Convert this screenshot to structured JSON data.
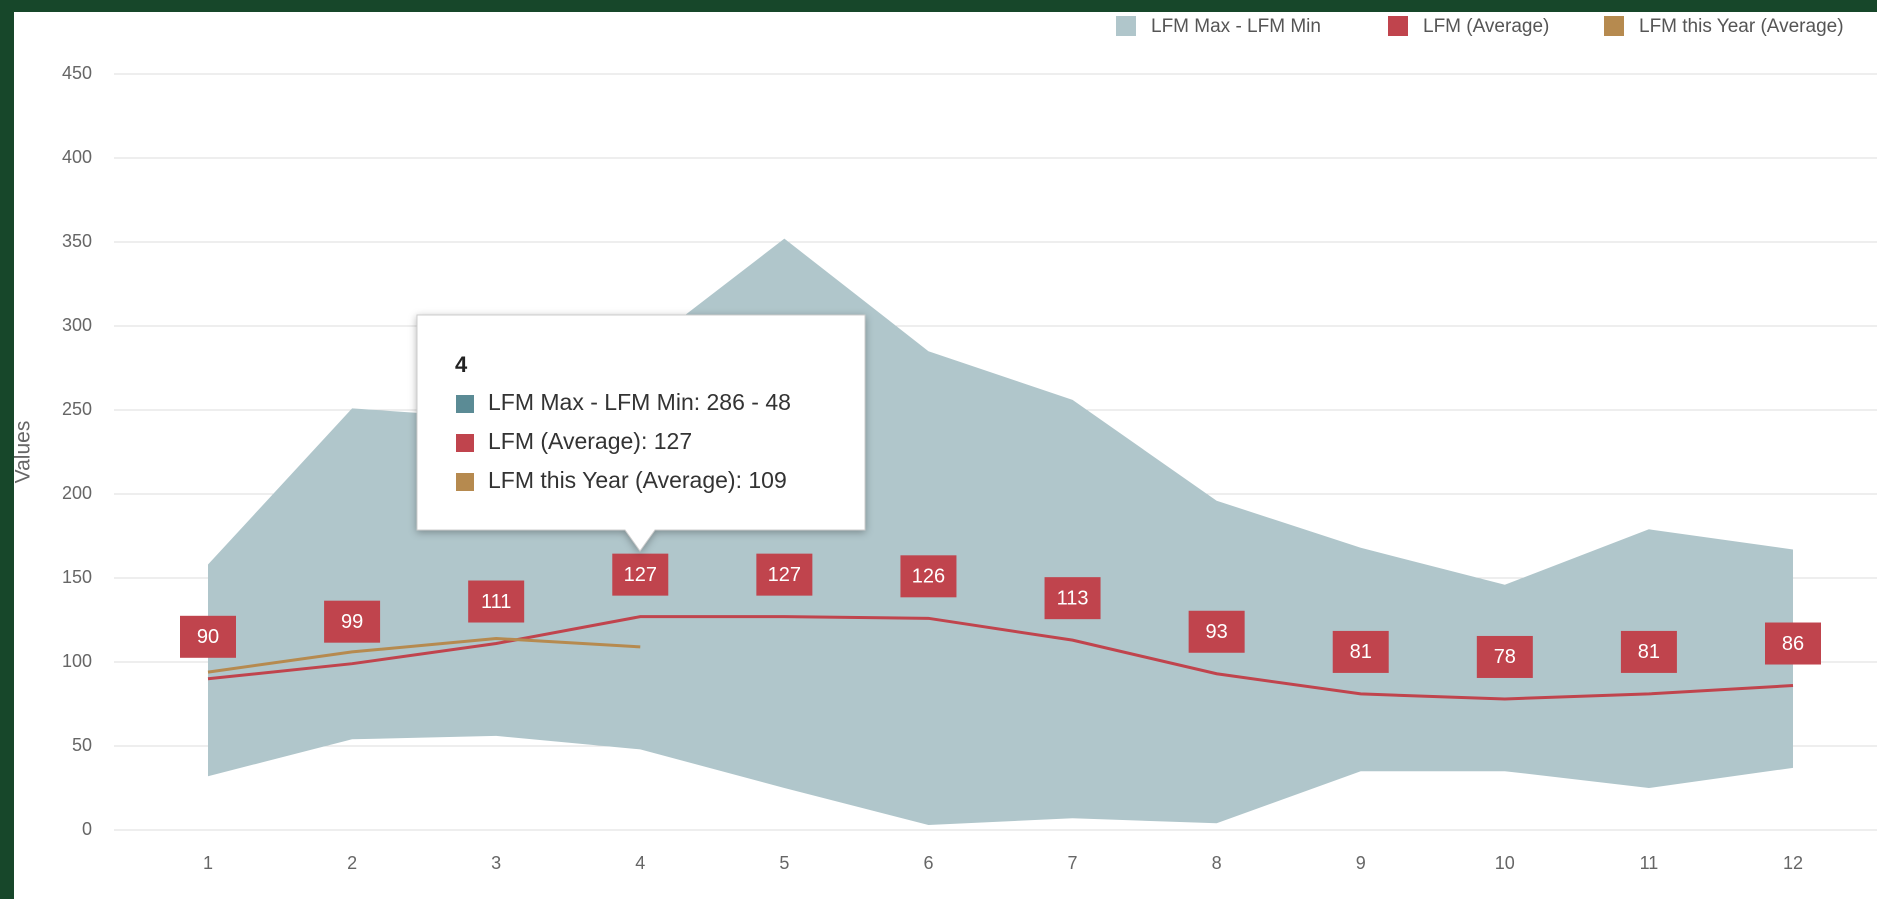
{
  "chart_data": {
    "type": "line",
    "axis_title": "Values",
    "categories": [
      "1",
      "2",
      "3",
      "4",
      "5",
      "6",
      "7",
      "8",
      "9",
      "10",
      "11",
      "12"
    ],
    "ylim": [
      0,
      450
    ],
    "yticks": [
      0,
      50,
      100,
      150,
      200,
      250,
      300,
      350,
      400,
      450
    ],
    "grid": true,
    "legend": "top-right",
    "range": {
      "name": "LFM Max - LFM Min",
      "color": "#b0c6cb",
      "high": [
        158,
        251,
        245,
        286,
        352,
        285,
        256,
        196,
        168,
        146,
        179,
        167
      ],
      "low": [
        32,
        54,
        56,
        48,
        25,
        3,
        7,
        4,
        35,
        35,
        25,
        37
      ]
    },
    "series": [
      {
        "name": "LFM (Average)",
        "color": "#c0444d",
        "labels": true,
        "values": [
          90,
          99,
          111,
          127,
          127,
          126,
          113,
          93,
          81,
          78,
          81,
          86
        ]
      },
      {
        "name": "LFM this Year (Average)",
        "color": "#b68a4f",
        "labels": false,
        "values": [
          94,
          106,
          114,
          109,
          null,
          null,
          null,
          null,
          null,
          null,
          null,
          null
        ]
      }
    ],
    "tooltip": {
      "title": "4",
      "items": [
        {
          "text": "LFM Max - LFM Min: 286 - 48",
          "color": "#5b8b95"
        },
        {
          "text": "LFM (Average): 127",
          "color": "#c0444d"
        },
        {
          "text": "LFM this Year (Average): 109",
          "color": "#b68a4f"
        }
      ]
    }
  }
}
